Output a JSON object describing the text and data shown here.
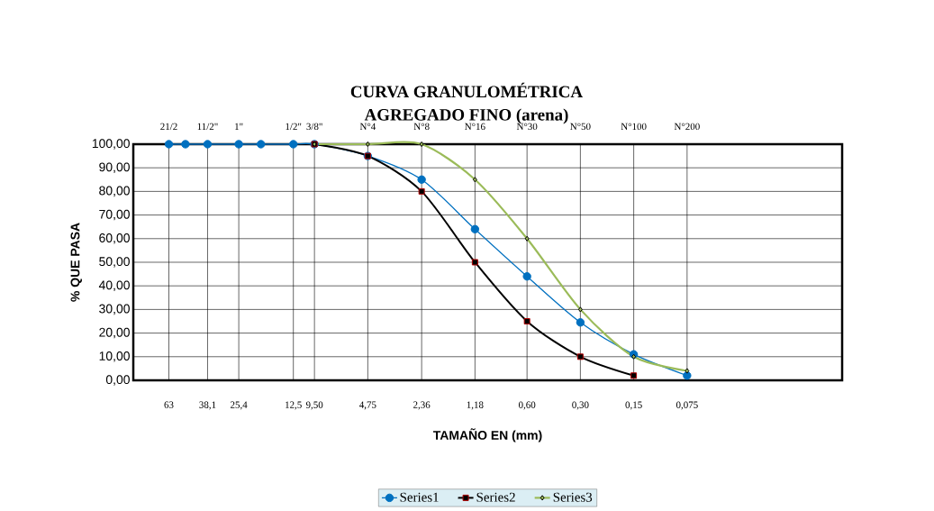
{
  "chart_data": {
    "type": "line",
    "title": "CURVA GRANULOMÉTRICA",
    "subtitle": "AGREGADO FINO (arena)",
    "xlabel": "TAMAÑO EN (mm)",
    "ylabel": "% QUE PASA",
    "log": "x",
    "grid": true,
    "legend": "bottom",
    "xlim": [
      100,
      0.01
    ],
    "ylim": [
      0,
      100
    ],
    "xticks": [
      {
        "value": 63,
        "label": "63"
      },
      {
        "value": 38.1,
        "label": "38,1"
      },
      {
        "value": 25.4,
        "label": "25,4"
      },
      {
        "value": 12.5,
        "label": "12,5"
      },
      {
        "value": 9.5,
        "label": "9,50"
      },
      {
        "value": 4.75,
        "label": "4,75"
      },
      {
        "value": 2.36,
        "label": "2,36"
      },
      {
        "value": 1.18,
        "label": "1,18"
      },
      {
        "value": 0.6,
        "label": "0,60"
      },
      {
        "value": 0.3,
        "label": "0,30"
      },
      {
        "value": 0.15,
        "label": "0,15"
      },
      {
        "value": 0.075,
        "label": "0,075"
      }
    ],
    "annotations": [
      "21/2",
      "11/2\"",
      "1\"",
      "1/2\"",
      "3/8\"",
      "N°4",
      "N°8",
      "N°16",
      "N°30",
      "N°50",
      "N°100",
      "N°200"
    ],
    "yticks": [
      {
        "value": 0,
        "label": "0,00"
      },
      {
        "value": 10,
        "label": "10,00"
      },
      {
        "value": 20,
        "label": "20,00"
      },
      {
        "value": 30,
        "label": "30,00"
      },
      {
        "value": 40,
        "label": "40,00"
      },
      {
        "value": 50,
        "label": "50,00"
      },
      {
        "value": 60,
        "label": "60,00"
      },
      {
        "value": 70,
        "label": "70,00"
      },
      {
        "value": 80,
        "label": "80,00"
      },
      {
        "value": 90,
        "label": "90,00"
      },
      {
        "value": 100,
        "label": "100,00"
      }
    ],
    "series": [
      {
        "name": "Series1",
        "color": "#0070c0",
        "marker": "circle",
        "x": [
          63,
          50.8,
          38.1,
          25.4,
          19.05,
          12.5,
          9.5,
          4.75,
          2.36,
          1.18,
          0.6,
          0.3,
          0.15,
          0.075
        ],
        "values": [
          100,
          100,
          100,
          100,
          100,
          100,
          100,
          95,
          85,
          64,
          44,
          24.5,
          11,
          2
        ]
      },
      {
        "name": "Series2",
        "color": "#000000",
        "marker": "square",
        "x": [
          9.5,
          4.75,
          2.36,
          1.18,
          0.6,
          0.3,
          0.15
        ],
        "values": [
          100,
          95,
          80,
          50,
          25,
          10,
          2
        ]
      },
      {
        "name": "Series3",
        "color": "#9bbb59",
        "marker": "diamond",
        "x": [
          9.5,
          4.75,
          2.36,
          1.18,
          0.6,
          0.3,
          0.15,
          0.075
        ],
        "values": [
          100,
          100,
          100,
          85,
          60,
          30,
          10,
          4
        ]
      }
    ]
  }
}
